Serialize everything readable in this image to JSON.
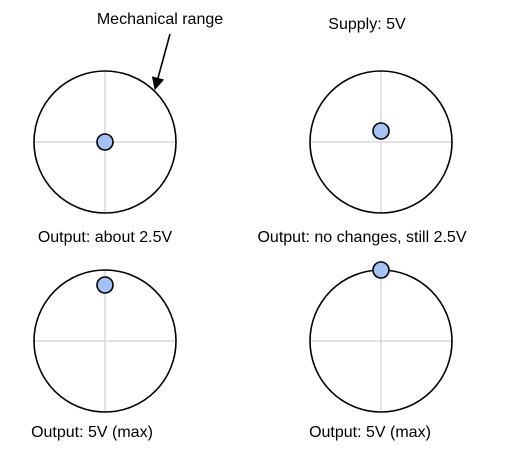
{
  "annotation": "Mechanical range",
  "supply": "Supply: 5V",
  "panels": [
    {
      "caption": "Output: about 2.5V"
    },
    {
      "caption": "Output: no changes, still 2.5V"
    },
    {
      "caption": "Output: 5V (max)"
    },
    {
      "caption": "Output: 5V (max)"
    }
  ]
}
